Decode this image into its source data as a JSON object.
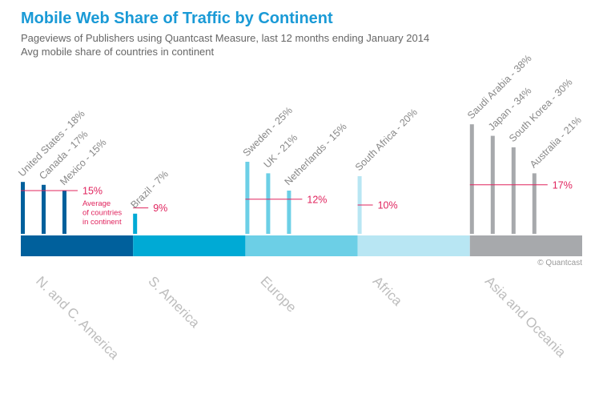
{
  "title": "Mobile Web Share of Traffic by Continent",
  "subtitle": "Pageviews of Publishers using Quantcast Measure, last 12 months ending January 2014",
  "subtitle2": "Avg mobile share of countries in continent",
  "avg_note_lines": [
    "Average",
    "of countries",
    "in continent"
  ],
  "credit": "© Quantcast",
  "chart_data": {
    "type": "bar",
    "unit": "%",
    "continents": [
      {
        "name": "N. and C. America",
        "color": "#00609c",
        "average": 15,
        "average_label": "15%",
        "countries": [
          {
            "label": "United States - 18%",
            "value": 18
          },
          {
            "label": "Canada - 17%",
            "value": 17
          },
          {
            "label": "Mexico - 15%",
            "value": 15
          }
        ]
      },
      {
        "name": "S. America",
        "color": "#00aad5",
        "average": 9,
        "average_label": "9%",
        "countries": [
          {
            "label": "Brazil - 7%",
            "value": 7
          }
        ]
      },
      {
        "name": "Europe",
        "color": "#6ccfe6",
        "average": 12,
        "average_label": "12%",
        "countries": [
          {
            "label": "Sweden - 25%",
            "value": 25
          },
          {
            "label": "UK - 21%",
            "value": 21
          },
          {
            "label": "Netherlands - 15%",
            "value": 15
          }
        ]
      },
      {
        "name": "Africa",
        "color": "#b8e6f3",
        "average": 10,
        "average_label": "10%",
        "countries": [
          {
            "label": "South Africa - 20%",
            "value": 20
          }
        ]
      },
      {
        "name": "Asia and Oceania",
        "color": "#a7a9ac",
        "average": 17,
        "average_label": "17%",
        "countries": [
          {
            "label": "Saudi Arabia - 38%",
            "value": 38
          },
          {
            "label": "Japan - 34%",
            "value": 34
          },
          {
            "label": "South Korea - 30%",
            "value": 30
          },
          {
            "label": "Australia - 21%",
            "value": 21
          }
        ]
      }
    ],
    "colors": {
      "average_line": "#e0245e",
      "title": "#1a9ad6",
      "continent_label": "#bdbdbd"
    }
  }
}
